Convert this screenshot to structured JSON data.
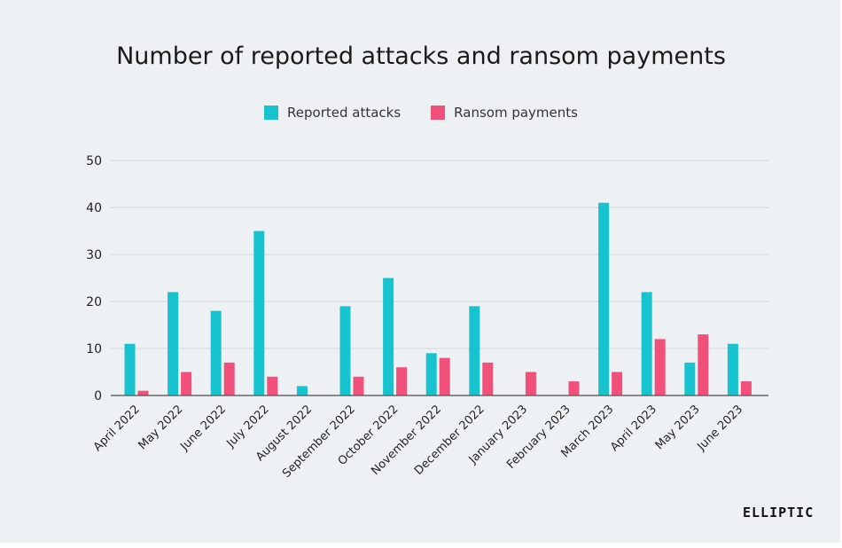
{
  "chart_data": {
    "type": "bar",
    "title": "Number of reported attacks and ransom payments",
    "categories": [
      "April 2022",
      "May 2022",
      "June 2022",
      "July 2022",
      "August 2022",
      "September 2022",
      "October 2022",
      "November 2022",
      "December 2022",
      "January 2023",
      "February 2023",
      "March 2023",
      "April 2023",
      "May 2023",
      "June 2023"
    ],
    "series": [
      {
        "name": "Reported attacks",
        "color": "#17c3cf",
        "values": [
          11,
          22,
          18,
          35,
          2,
          19,
          25,
          9,
          19,
          0,
          0,
          41,
          22,
          7,
          11
        ]
      },
      {
        "name": "Ransom payments",
        "color": "#f0507a",
        "values": [
          1,
          5,
          7,
          4,
          0,
          4,
          6,
          8,
          7,
          5,
          3,
          5,
          12,
          13,
          3
        ]
      }
    ],
    "ylim": [
      0,
      50
    ],
    "yticks": [
      0,
      10,
      20,
      30,
      40,
      50
    ],
    "grid": true,
    "legend_position": "top"
  },
  "branding": {
    "logo": "ELLIPTIC"
  }
}
